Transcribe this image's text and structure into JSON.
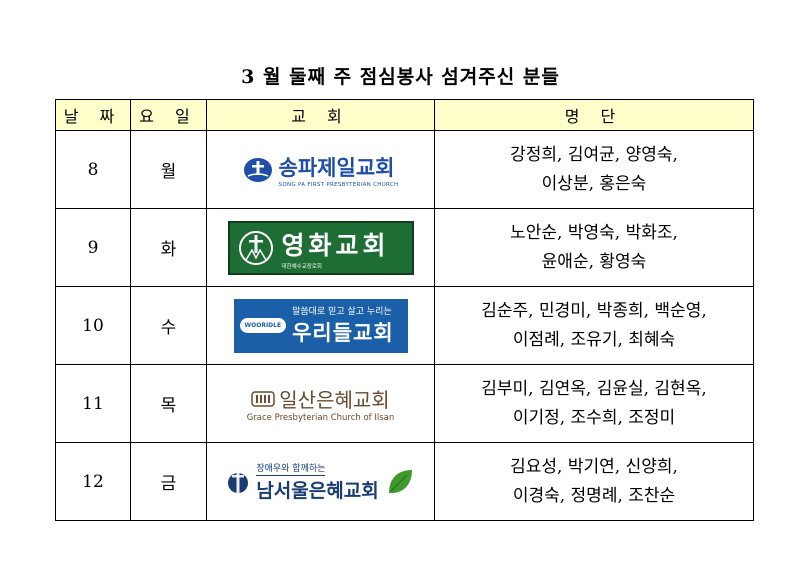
{
  "title": "3 월 둘째 주 점심봉사 섬겨주신 분들",
  "table": {
    "headers": [
      "날 짜",
      "요 일",
      "교 회",
      "명 단"
    ],
    "rows": [
      {
        "date": "8",
        "day": "월",
        "church": {
          "name": "송파제일교회",
          "sub": "SONG PA FIRST PRESBYTERIAN CHURCH"
        },
        "names": [
          "강정희, 김여균, 양영숙,",
          "이상분,   홍은숙"
        ]
      },
      {
        "date": "9",
        "day": "화",
        "church": {
          "name": "영화교회",
          "sub": "대한예수교장로회"
        },
        "names": [
          "노안순, 박영숙, 박화조,",
          "윤애순, 황영숙"
        ]
      },
      {
        "date": "10",
        "day": "수",
        "church": {
          "name": "우리들교회",
          "sub": "말씀대로 믿고 살고 누리는",
          "badge": "WOORIDLE"
        },
        "names": [
          "김순주,  민경미, 박종희, 백순영,",
          "이점례, 조유기, 최혜숙"
        ]
      },
      {
        "date": "11",
        "day": "목",
        "church": {
          "name": "일산은혜교회",
          "sub": "Grace Presbyterian Church of Ilsan"
        },
        "names": [
          "김부미, 김연옥, 김윤실, 김현옥,",
          "이기정, 조수희, 조정미"
        ]
      },
      {
        "date": "12",
        "day": "금",
        "church": {
          "name": "남서울은혜교회",
          "sub": "장애우와 함께하는"
        },
        "names": [
          "김요성, 박기연, 신양희,",
          "이경숙, 정명례, 조찬순"
        ]
      }
    ]
  },
  "colors": {
    "header_bg": "#ffffcc",
    "songpa": "#1f4ea8",
    "younghwa": "#1e6d34",
    "woori": "#1a5fa7",
    "ilsan": "#6a4b2c",
    "namseoul": "#1a3c73"
  }
}
